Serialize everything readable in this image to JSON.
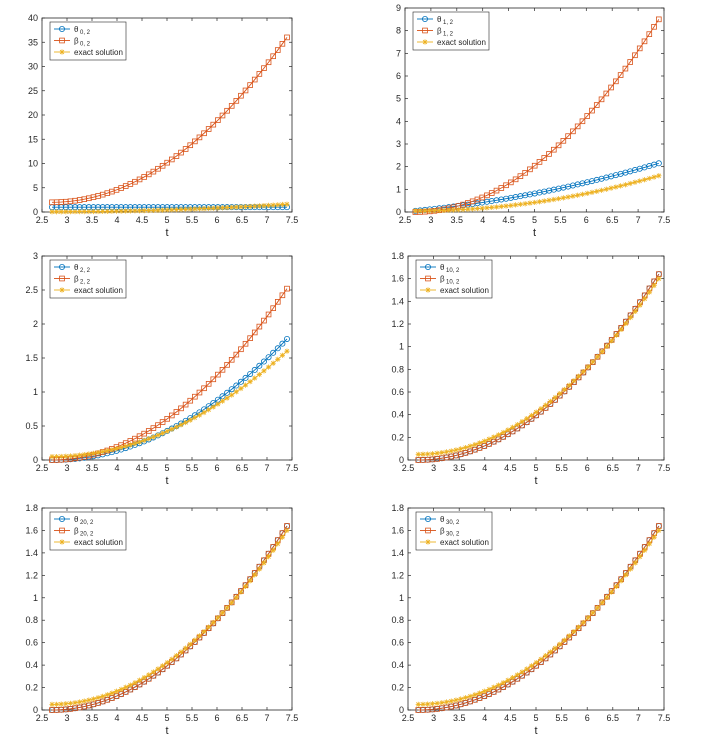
{
  "colors": {
    "theta": "#0072BD",
    "beta": "#D95319",
    "exact": "#EDB120",
    "axis": "#262626"
  },
  "chart_data": [
    {
      "type": "line",
      "xlabel": "t",
      "xlim": [
        2.5,
        7.5
      ],
      "ylim": [
        0,
        40
      ],
      "xticks": [
        "2.5",
        "3",
        "3.5",
        "4",
        "4.5",
        "5",
        "5.5",
        "6",
        "6.5",
        "7",
        "7.5"
      ],
      "yticks": [
        "0",
        "5",
        "10",
        "15",
        "20",
        "25",
        "30",
        "35",
        "40"
      ],
      "legend_location": "top-left",
      "series": [
        {
          "name": "θ",
          "subscript": "0, 2",
          "marker": "circle",
          "color_key": "theta",
          "x_range": [
            2.7,
            7.4
          ],
          "y_start": 1.0,
          "y_end": 1.0
        },
        {
          "name": "β",
          "subscript": "0, 2",
          "marker": "square",
          "color_key": "beta",
          "x_range": [
            2.7,
            7.4
          ],
          "y_start": 2.0,
          "y_end": 36.0
        },
        {
          "name": "exact solution",
          "marker": "star",
          "color_key": "exact",
          "x_range": [
            2.7,
            7.4
          ],
          "y_start": 0.05,
          "y_end": 1.6
        }
      ]
    },
    {
      "type": "line",
      "xlabel": "t",
      "xlim": [
        2.5,
        7.5
      ],
      "ylim": [
        0,
        9
      ],
      "xticks": [
        "2.5",
        "3",
        "3.5",
        "4",
        "4.5",
        "5",
        "5.5",
        "6",
        "6.5",
        "7",
        "7.5"
      ],
      "yticks": [
        "0",
        "1",
        "2",
        "3",
        "4",
        "5",
        "6",
        "7",
        "8",
        "9"
      ],
      "legend_location": "top-left",
      "series": [
        {
          "name": "θ",
          "subscript": "1, 2",
          "marker": "circle",
          "color_key": "theta",
          "x_range": [
            2.7,
            7.4
          ],
          "y_start": 0.05,
          "y_end": 2.15
        },
        {
          "name": "β",
          "subscript": "1, 2",
          "marker": "square",
          "color_key": "beta",
          "x_range": [
            2.7,
            7.4
          ],
          "y_start": 0.0,
          "y_end": 8.5
        },
        {
          "name": "exact solution",
          "marker": "star",
          "color_key": "exact",
          "x_range": [
            2.7,
            7.4
          ],
          "y_start": 0.05,
          "y_end": 1.6
        }
      ]
    },
    {
      "type": "line",
      "xlabel": "t",
      "xlim": [
        2.5,
        7.5
      ],
      "ylim": [
        0,
        3
      ],
      "xticks": [
        "2.5",
        "3",
        "3.5",
        "4",
        "4.5",
        "5",
        "5.5",
        "6",
        "6.5",
        "7",
        "7.5"
      ],
      "yticks": [
        "0",
        "0.5",
        "1",
        "1.5",
        "2",
        "2.5",
        "3"
      ],
      "legend_location": "top-left",
      "series": [
        {
          "name": "θ",
          "subscript": "2, 2",
          "marker": "circle",
          "color_key": "theta",
          "x_range": [
            2.7,
            7.4
          ],
          "y_start": 0.0,
          "y_end": 1.78
        },
        {
          "name": "β",
          "subscript": "2, 2",
          "marker": "square",
          "color_key": "beta",
          "x_range": [
            2.7,
            7.4
          ],
          "y_start": 0.0,
          "y_end": 2.52
        },
        {
          "name": "exact solution",
          "marker": "star",
          "color_key": "exact",
          "x_range": [
            2.7,
            7.4
          ],
          "y_start": 0.05,
          "y_end": 1.6
        }
      ]
    },
    {
      "type": "line",
      "xlabel": "t",
      "xlim": [
        2.5,
        7.5
      ],
      "ylim": [
        0,
        1.8
      ],
      "xticks": [
        "2.5",
        "3",
        "3.5",
        "4",
        "4.5",
        "5",
        "5.5",
        "6",
        "6.5",
        "7",
        "7.5"
      ],
      "yticks": [
        "0",
        "0.2",
        "0.4",
        "0.6",
        "0.8",
        "1",
        "1.2",
        "1.4",
        "1.6",
        "1.8"
      ],
      "legend_location": "top-left",
      "series": [
        {
          "name": "θ",
          "subscript": "10, 2",
          "marker": "circle",
          "color_key": "theta",
          "x_range": [
            2.7,
            7.4
          ],
          "y_start": 0.0,
          "y_end": 1.64
        },
        {
          "name": "β",
          "subscript": "10, 2",
          "marker": "square",
          "color_key": "beta",
          "x_range": [
            2.7,
            7.4
          ],
          "y_start": 0.0,
          "y_end": 1.64
        },
        {
          "name": "exact solution",
          "marker": "star",
          "color_key": "exact",
          "x_range": [
            2.7,
            7.4
          ],
          "y_start": 0.05,
          "y_end": 1.6
        }
      ]
    },
    {
      "type": "line",
      "xlabel": "t",
      "xlim": [
        2.5,
        7.5
      ],
      "ylim": [
        0,
        1.8
      ],
      "xticks": [
        "2.5",
        "3",
        "3.5",
        "4",
        "4.5",
        "5",
        "5.5",
        "6",
        "6.5",
        "7",
        "7.5"
      ],
      "yticks": [
        "0",
        "0.2",
        "0.4",
        "0.6",
        "0.8",
        "1",
        "1.2",
        "1.4",
        "1.6",
        "1.8"
      ],
      "legend_location": "top-left",
      "series": [
        {
          "name": "θ",
          "subscript": "20, 2",
          "marker": "circle",
          "color_key": "theta",
          "x_range": [
            2.7,
            7.4
          ],
          "y_start": 0.0,
          "y_end": 1.64
        },
        {
          "name": "β",
          "subscript": "20, 2",
          "marker": "square",
          "color_key": "beta",
          "x_range": [
            2.7,
            7.4
          ],
          "y_start": 0.0,
          "y_end": 1.64
        },
        {
          "name": "exact solution",
          "marker": "star",
          "color_key": "exact",
          "x_range": [
            2.7,
            7.4
          ],
          "y_start": 0.05,
          "y_end": 1.6
        }
      ]
    },
    {
      "type": "line",
      "xlabel": "t",
      "xlim": [
        2.5,
        7.5
      ],
      "ylim": [
        0,
        1.8
      ],
      "xticks": [
        "2.5",
        "3",
        "3.5",
        "4",
        "4.5",
        "5",
        "5.5",
        "6",
        "6.5",
        "7",
        "7.5"
      ],
      "yticks": [
        "0",
        "0.2",
        "0.4",
        "0.6",
        "0.8",
        "1",
        "1.2",
        "1.4",
        "1.6",
        "1.8"
      ],
      "legend_location": "top-left",
      "series": [
        {
          "name": "θ",
          "subscript": "30, 2",
          "marker": "circle",
          "color_key": "theta",
          "x_range": [
            2.7,
            7.4
          ],
          "y_start": 0.0,
          "y_end": 1.64
        },
        {
          "name": "β",
          "subscript": "30, 2",
          "marker": "square",
          "color_key": "beta",
          "x_range": [
            2.7,
            7.4
          ],
          "y_start": 0.0,
          "y_end": 1.64
        },
        {
          "name": "exact solution",
          "marker": "star",
          "color_key": "exact",
          "x_range": [
            2.7,
            7.4
          ],
          "y_start": 0.05,
          "y_end": 1.6
        }
      ]
    }
  ]
}
